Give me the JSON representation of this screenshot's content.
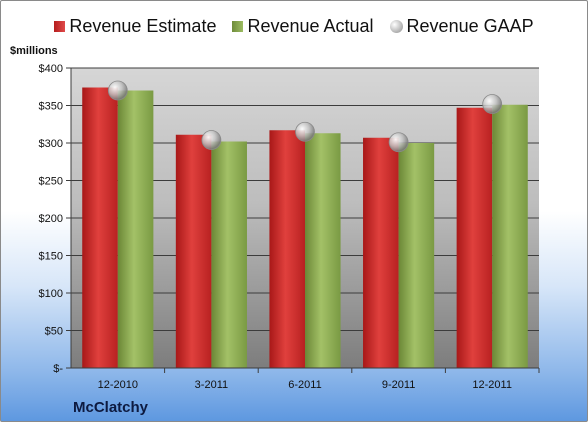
{
  "chart_data": {
    "type": "bar",
    "title": "",
    "unit_label": "$millions",
    "company": "McClatchy",
    "categories": [
      "12-2010",
      "3-2011",
      "6-2011",
      "9-2011",
      "12-2011"
    ],
    "series": [
      {
        "name": "Revenue Estimate",
        "values": [
          374,
          311,
          317,
          307,
          347
        ],
        "color": "#c62828"
      },
      {
        "name": "Revenue Actual",
        "values": [
          370,
          302,
          313,
          300,
          351
        ],
        "color": "#8cab56"
      },
      {
        "name": "Revenue GAAP",
        "values": [
          370,
          304,
          315,
          301,
          352
        ],
        "color": "#b0b0b0"
      }
    ],
    "ylim": [
      0,
      400
    ],
    "y_ticks": [
      {
        "value": 0,
        "label": "$-"
      },
      {
        "value": 50,
        "label": "$50"
      },
      {
        "value": 100,
        "label": "$100"
      },
      {
        "value": 150,
        "label": "$150"
      },
      {
        "value": 200,
        "label": "$200"
      },
      {
        "value": 250,
        "label": "$250"
      },
      {
        "value": 300,
        "label": "$300"
      },
      {
        "value": 350,
        "label": "$350"
      },
      {
        "value": 400,
        "label": "$400"
      }
    ],
    "grid": true,
    "legend_position": "top"
  }
}
